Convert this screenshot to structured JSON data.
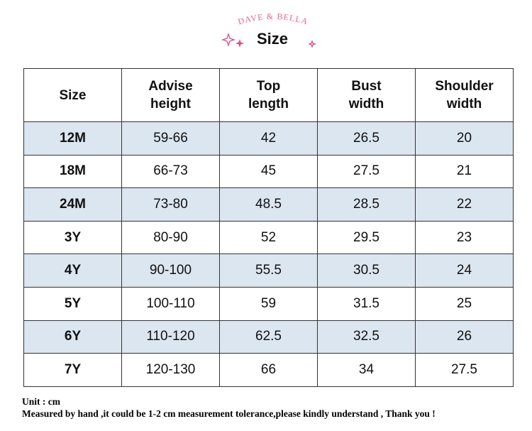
{
  "header": {
    "brand": "DAVE & BELLA",
    "title": "Size"
  },
  "table": {
    "columns": [
      "Size",
      "Advise height",
      "Top length",
      "Bust width",
      "Shoulder width"
    ],
    "rows": [
      [
        "12M",
        "59-66",
        "42",
        "26.5",
        "20"
      ],
      [
        "18M",
        "66-73",
        "45",
        "27.5",
        "21"
      ],
      [
        "24M",
        "73-80",
        "48.5",
        "28.5",
        "22"
      ],
      [
        "3Y",
        "80-90",
        "52",
        "29.5",
        "23"
      ],
      [
        "4Y",
        "90-100",
        "55.5",
        "30.5",
        "24"
      ],
      [
        "5Y",
        "100-110",
        "59",
        "31.5",
        "25"
      ],
      [
        "6Y",
        "110-120",
        "62.5",
        "32.5",
        "26"
      ],
      [
        "7Y",
        "120-130",
        "66",
        "34",
        "27.5"
      ]
    ]
  },
  "footer": {
    "unit": "Unit : cm",
    "note": "Measured by hand ,it could be 1-2 cm measurement tolerance,please kindly understand , Thank you !"
  }
}
